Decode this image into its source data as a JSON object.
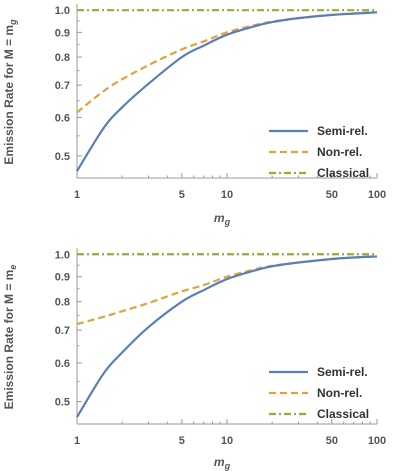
{
  "colors": {
    "semi": "#5b7fb5",
    "non": "#e2a23a",
    "classical": "#8fb132",
    "axis": "#999999",
    "text": "#555555"
  },
  "chart_data": [
    {
      "type": "line",
      "x_scale": "log",
      "y_scale": "log",
      "xlim": [
        1,
        100
      ],
      "ylim": [
        0.45,
        1.03
      ],
      "xticks": [
        1,
        5,
        10,
        50,
        100
      ],
      "xtick_labels": [
        "1",
        "5",
        "10",
        "50",
        "100"
      ],
      "yticks": [
        0.5,
        0.6,
        0.7,
        0.8,
        0.9,
        1.0
      ],
      "ytick_labels": [
        "0.5",
        "0.6",
        "0.7",
        "0.8",
        "0.9",
        "1.0"
      ],
      "xlabel_main": "m",
      "xlabel_sub": "g",
      "ylabel_main": "Emission Rate for M = m",
      "ylabel_sub": "g",
      "legend_position": "bottom-right",
      "series": [
        {
          "name": "Semi-rel.",
          "style": "solid",
          "x": [
            1,
            1.5,
            2,
            3,
            5,
            7,
            10,
            15,
            20,
            30,
            50,
            70,
            100
          ],
          "y": [
            0.465,
            0.57,
            0.63,
            0.705,
            0.8,
            0.845,
            0.89,
            0.925,
            0.945,
            0.963,
            0.978,
            0.984,
            0.99
          ]
        },
        {
          "name": "Non-rel.",
          "style": "dashed",
          "x": [
            1,
            1.5,
            2,
            3,
            5,
            7,
            10,
            15,
            20,
            30,
            50,
            70,
            100
          ],
          "y": [
            0.615,
            0.68,
            0.72,
            0.77,
            0.83,
            0.862,
            0.9,
            0.93,
            0.947,
            0.963,
            0.978,
            0.985,
            0.99
          ]
        },
        {
          "name": "Classical",
          "style": "dashdot",
          "x": [
            1,
            100
          ],
          "y": [
            1.0,
            1.0
          ]
        }
      ]
    },
    {
      "type": "line",
      "x_scale": "log",
      "y_scale": "log",
      "xlim": [
        1,
        100
      ],
      "ylim": [
        0.45,
        1.03
      ],
      "xticks": [
        1,
        5,
        10,
        50,
        100
      ],
      "xtick_labels": [
        "1",
        "5",
        "10",
        "50",
        "100"
      ],
      "yticks": [
        0.5,
        0.6,
        0.7,
        0.8,
        0.9,
        1.0
      ],
      "ytick_labels": [
        "0.5",
        "0.6",
        "0.7",
        "0.8",
        "0.9",
        "1.0"
      ],
      "xlabel_main": "m",
      "xlabel_sub": "g",
      "ylabel_main": "Emission Rate for M = m",
      "ylabel_sub": "e",
      "legend_position": "bottom-right",
      "series": [
        {
          "name": "Semi-rel.",
          "style": "solid",
          "x": [
            1,
            1.5,
            2,
            3,
            5,
            7,
            10,
            15,
            20,
            30,
            50,
            70,
            100
          ],
          "y": [
            0.465,
            0.57,
            0.63,
            0.71,
            0.8,
            0.845,
            0.89,
            0.925,
            0.945,
            0.962,
            0.978,
            0.985,
            0.99
          ]
        },
        {
          "name": "Non-rel.",
          "style": "dashed",
          "x": [
            1,
            1.5,
            2,
            3,
            5,
            7,
            10,
            15,
            20,
            30,
            50,
            70,
            100
          ],
          "y": [
            0.72,
            0.745,
            0.765,
            0.795,
            0.84,
            0.865,
            0.9,
            0.93,
            0.947,
            0.962,
            0.978,
            0.985,
            0.99
          ]
        },
        {
          "name": "Classical",
          "style": "dashdot",
          "x": [
            1,
            100
          ],
          "y": [
            1.0,
            1.0
          ]
        }
      ]
    }
  ]
}
